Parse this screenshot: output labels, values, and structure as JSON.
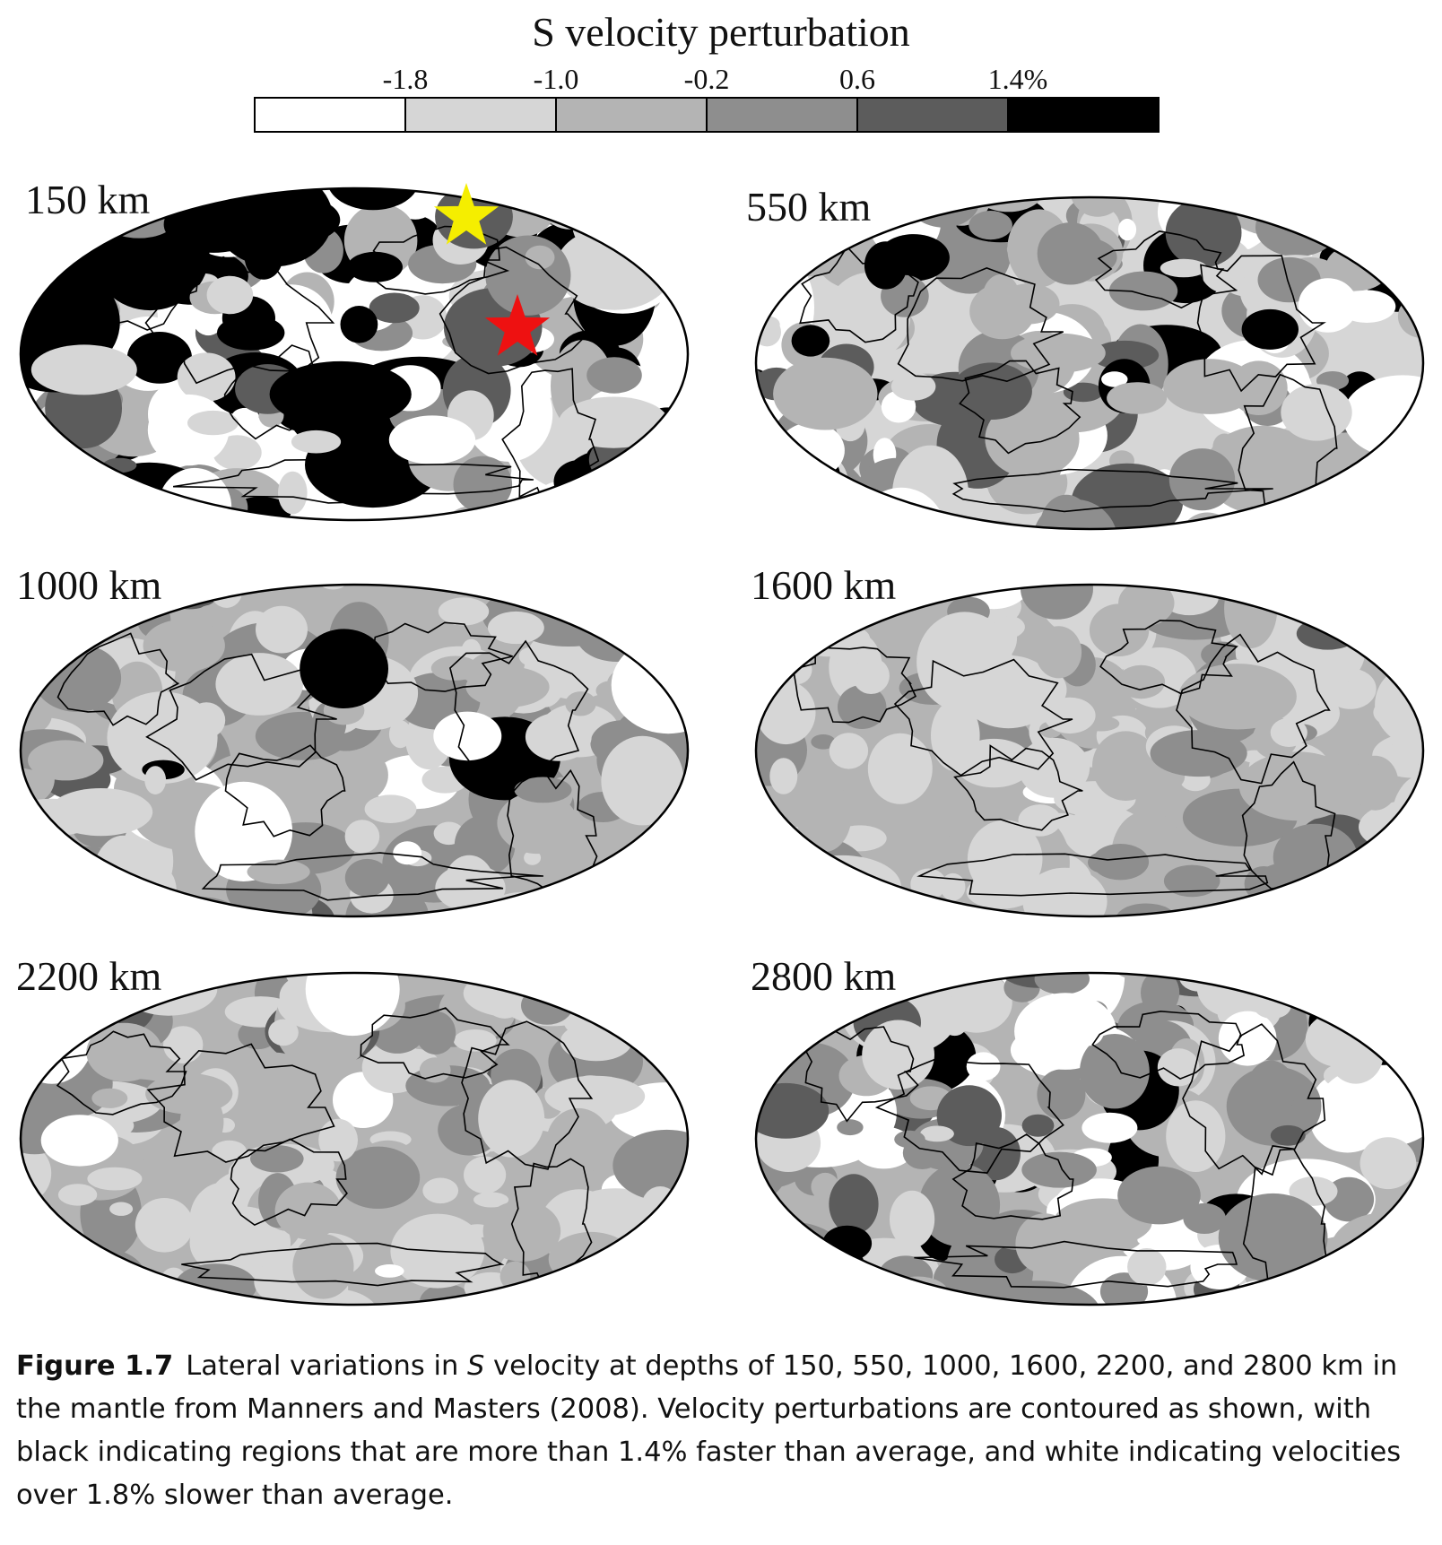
{
  "legend": {
    "title": "S velocity perturbation",
    "ticks": [
      "-1.8",
      "-1.0",
      "-0.2",
      "0.6",
      "1.4%"
    ],
    "shades": [
      "#ffffff",
      "#d6d6d6",
      "#b4b4b4",
      "#8e8e8e",
      "#5c5c5c",
      "#000000"
    ]
  },
  "panels": [
    {
      "depth": "150 km",
      "shade_weights": [
        0.36,
        0.16,
        0.12,
        0.08,
        0.06,
        0.22
      ]
    },
    {
      "depth": "550 km",
      "shade_weights": [
        0.16,
        0.3,
        0.24,
        0.14,
        0.08,
        0.08
      ]
    },
    {
      "depth": "1000 km",
      "shade_weights": [
        0.04,
        0.26,
        0.46,
        0.18,
        0.04,
        0.02
      ]
    },
    {
      "depth": "1600 km",
      "shade_weights": [
        0.02,
        0.3,
        0.52,
        0.14,
        0.02,
        0.0
      ]
    },
    {
      "depth": "2200 km",
      "shade_weights": [
        0.04,
        0.3,
        0.44,
        0.2,
        0.02,
        0.0
      ]
    },
    {
      "depth": "2800 km",
      "shade_weights": [
        0.16,
        0.22,
        0.28,
        0.22,
        0.08,
        0.04
      ]
    }
  ],
  "markers": [
    {
      "panel": 0,
      "name": "yellow-star",
      "color": "#f5ee00"
    },
    {
      "panel": 0,
      "name": "red-star",
      "color": "#ee1111"
    }
  ],
  "caption": {
    "label": "Figure 1.7",
    "text_before": "Lateral variations in ",
    "symbol": "S",
    "text_after": " velocity at depths of 150, 550, 1000, 1600, 2200, and 2800 km in the mantle from Manners and Masters (2008). Velocity perturbations are contoured as shown, with black indicating regions that are more than 1.4% faster than average, and white indicating velocities over 1.8% slower than average."
  }
}
